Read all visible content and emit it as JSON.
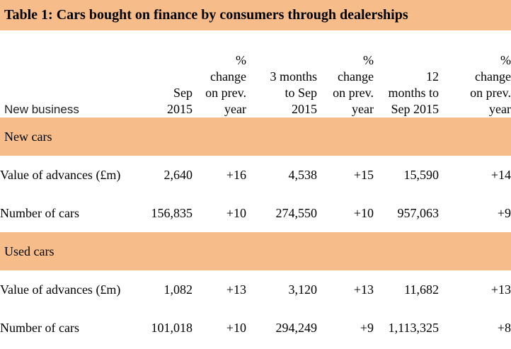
{
  "title": "Table 1: Cars bought on finance by consumers through dealerships",
  "colors": {
    "accent_orange": "#F6BD8A",
    "text": "#000000"
  },
  "header": {
    "row_label": "New business",
    "columns": [
      {
        "lines": [
          "Sep",
          "2015"
        ]
      },
      {
        "lines": [
          "%",
          "change",
          "on prev.",
          "year"
        ]
      },
      {
        "lines": [
          "3 months",
          "to Sep",
          "2015"
        ]
      },
      {
        "lines": [
          "%",
          "change",
          "on prev.",
          "year"
        ]
      },
      {
        "lines": [
          "12",
          "months to",
          "Sep 2015"
        ]
      },
      {
        "lines": [
          "%",
          "change",
          "on prev.",
          "year"
        ]
      }
    ]
  },
  "sections": [
    {
      "label": "New cars",
      "rows": [
        {
          "label": "Value of advances (£m)",
          "values": [
            "2,640",
            "+16",
            "4,538",
            "+15",
            "15,590",
            "+14"
          ]
        },
        {
          "label": "Number of cars",
          "values": [
            "156,835",
            "+10",
            "274,550",
            "+10",
            "957,063",
            "+9"
          ]
        }
      ]
    },
    {
      "label": "Used cars",
      "rows": [
        {
          "label": "Value of advances (£m)",
          "values": [
            "1,082",
            "+13",
            "3,120",
            "+13",
            "11,682",
            "+13"
          ]
        },
        {
          "label": "Number of cars",
          "values": [
            "101,018",
            "+10",
            "294,249",
            "+9",
            "1,113,325",
            "+8"
          ]
        }
      ]
    }
  ]
}
